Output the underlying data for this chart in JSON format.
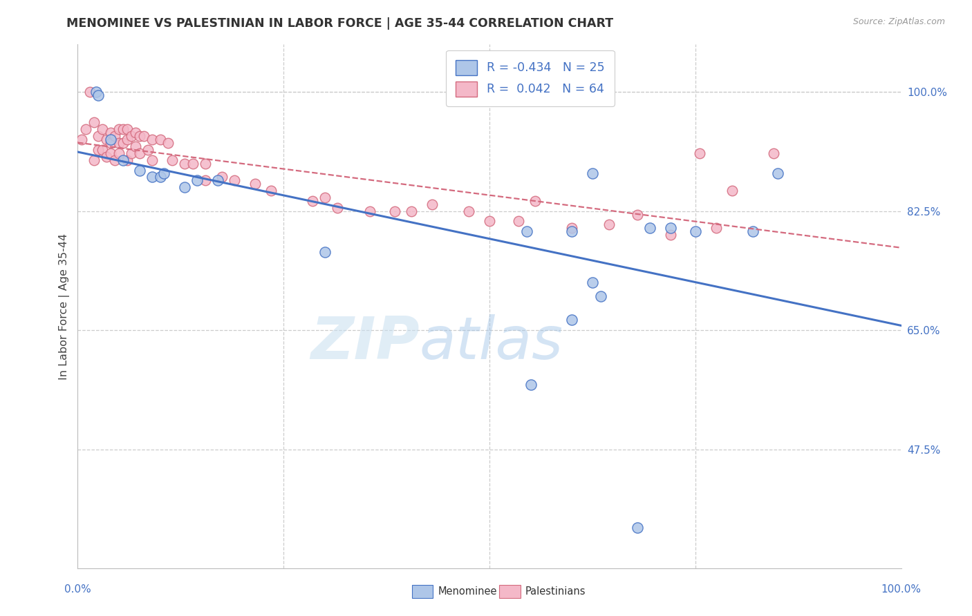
{
  "title": "MENOMINEE VS PALESTINIAN IN LABOR FORCE | AGE 35-44 CORRELATION CHART",
  "source": "Source: ZipAtlas.com",
  "ylabel": "In Labor Force | Age 35-44",
  "xlim": [
    0.0,
    1.0
  ],
  "ylim": [
    0.3,
    1.07
  ],
  "y_ticks": [
    0.475,
    0.65,
    0.825,
    1.0
  ],
  "y_tick_labels": [
    "47.5%",
    "65.0%",
    "82.5%",
    "100.0%"
  ],
  "watermark_zip": "ZIP",
  "watermark_atlas": "atlas",
  "legend_blue_r": "-0.434",
  "legend_blue_n": "25",
  "legend_pink_r": " 0.042",
  "legend_pink_n": "64",
  "blue_scatter_color": "#aec6e8",
  "blue_line_color": "#4472c4",
  "pink_scatter_color": "#f4b8c8",
  "pink_line_color": "#d46a7e",
  "menominee_x": [
    0.022,
    0.025,
    0.04,
    0.055,
    0.075,
    0.09,
    0.1,
    0.105,
    0.13,
    0.145,
    0.17,
    0.3,
    0.55,
    0.6,
    0.625,
    0.635,
    0.68,
    0.72,
    0.75,
    0.82,
    0.85,
    0.6,
    0.625,
    0.695,
    0.545
  ],
  "menominee_y": [
    1.0,
    0.995,
    0.93,
    0.9,
    0.885,
    0.875,
    0.875,
    0.88,
    0.86,
    0.87,
    0.87,
    0.765,
    0.57,
    0.665,
    0.72,
    0.7,
    0.36,
    0.8,
    0.795,
    0.795,
    0.88,
    0.795,
    0.88,
    0.8,
    0.795
  ],
  "palestinian_x": [
    0.005,
    0.01,
    0.015,
    0.02,
    0.02,
    0.025,
    0.025,
    0.03,
    0.03,
    0.035,
    0.035,
    0.04,
    0.04,
    0.04,
    0.045,
    0.045,
    0.05,
    0.05,
    0.05,
    0.055,
    0.055,
    0.06,
    0.06,
    0.06,
    0.065,
    0.065,
    0.07,
    0.07,
    0.075,
    0.075,
    0.08,
    0.085,
    0.09,
    0.09,
    0.1,
    0.11,
    0.115,
    0.13,
    0.14,
    0.155,
    0.155,
    0.175,
    0.19,
    0.215,
    0.235,
    0.285,
    0.3,
    0.315,
    0.355,
    0.385,
    0.405,
    0.43,
    0.475,
    0.5,
    0.535,
    0.555,
    0.6,
    0.645,
    0.68,
    0.72,
    0.755,
    0.775,
    0.795,
    0.845
  ],
  "palestinian_y": [
    0.93,
    0.945,
    1.0,
    0.955,
    0.9,
    0.935,
    0.915,
    0.945,
    0.915,
    0.93,
    0.905,
    0.94,
    0.925,
    0.91,
    0.935,
    0.9,
    0.945,
    0.925,
    0.91,
    0.945,
    0.925,
    0.945,
    0.93,
    0.9,
    0.935,
    0.91,
    0.94,
    0.92,
    0.935,
    0.91,
    0.935,
    0.915,
    0.93,
    0.9,
    0.93,
    0.925,
    0.9,
    0.895,
    0.895,
    0.895,
    0.87,
    0.875,
    0.87,
    0.865,
    0.855,
    0.84,
    0.845,
    0.83,
    0.825,
    0.825,
    0.825,
    0.835,
    0.825,
    0.81,
    0.81,
    0.84,
    0.8,
    0.805,
    0.82,
    0.79,
    0.91,
    0.8,
    0.855,
    0.91
  ]
}
